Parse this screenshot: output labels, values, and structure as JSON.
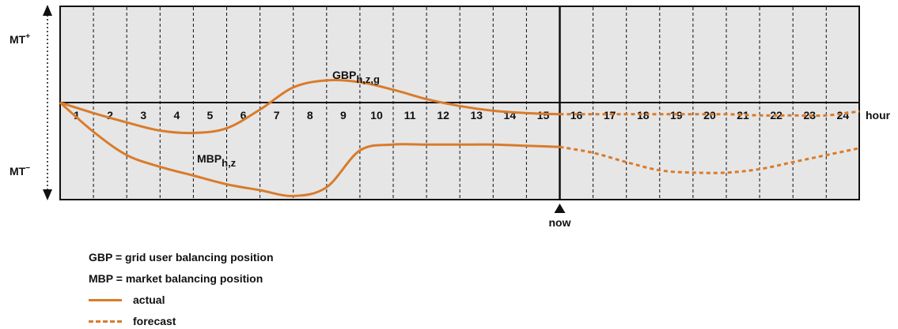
{
  "chart_data": {
    "type": "line",
    "x": [
      0,
      1,
      2,
      3,
      4,
      5,
      6,
      7,
      8,
      9,
      10,
      11,
      12,
      13,
      14,
      15,
      16,
      17,
      18,
      19,
      20,
      21,
      22,
      23,
      24
    ],
    "xlabel": "hour",
    "hour_ticks": [
      "1",
      "2",
      "3",
      "4",
      "5",
      "6",
      "7",
      "8",
      "9",
      "10",
      "11",
      "12",
      "13",
      "14",
      "15",
      "16",
      "17",
      "18",
      "19",
      "20",
      "21",
      "22",
      "23",
      "24"
    ],
    "now_hour": 15,
    "now_label": "now",
    "y_top_label": "MT",
    "y_top_sup": "+",
    "y_bottom_label": "MT",
    "y_bottom_sup": "−",
    "ylim": [
      -1,
      1
    ],
    "series": [
      {
        "name": "GBP",
        "label_main": "GBP",
        "label_sub": "h,z,g",
        "actual": [
          0,
          -0.18,
          -0.34,
          -0.48,
          -0.52,
          -0.44,
          -0.12,
          0.26,
          0.38,
          0.35,
          0.22,
          0.06,
          -0.06,
          -0.14,
          -0.18,
          -0.2
        ],
        "forecast": [
          -0.2,
          -0.2,
          -0.2,
          -0.2,
          -0.2,
          -0.2,
          -0.22,
          -0.22,
          -0.22,
          -0.15
        ]
      },
      {
        "name": "MBP",
        "label_main": "MBP",
        "label_sub": "h,z",
        "actual": [
          0,
          -0.5,
          -0.9,
          -1.1,
          -1.25,
          -1.4,
          -1.5,
          -1.6,
          -1.45,
          -0.82,
          -0.72,
          -0.72,
          -0.72,
          -0.72,
          -0.74,
          -0.76
        ],
        "forecast": [
          -0.76,
          -0.86,
          -1.02,
          -1.16,
          -1.2,
          -1.2,
          -1.14,
          -1.02,
          -0.9,
          -0.78
        ]
      }
    ],
    "colors": {
      "line": "#d97b2b",
      "panel": "#e6e6e6",
      "axis": "#111111"
    },
    "grid": "vertical dashed at each hour"
  },
  "legend": {
    "gbp_def": "GBP = grid user balancing position",
    "mbp_def": "MBP = market balancing position",
    "actual": "actual",
    "forecast": "forecast"
  }
}
